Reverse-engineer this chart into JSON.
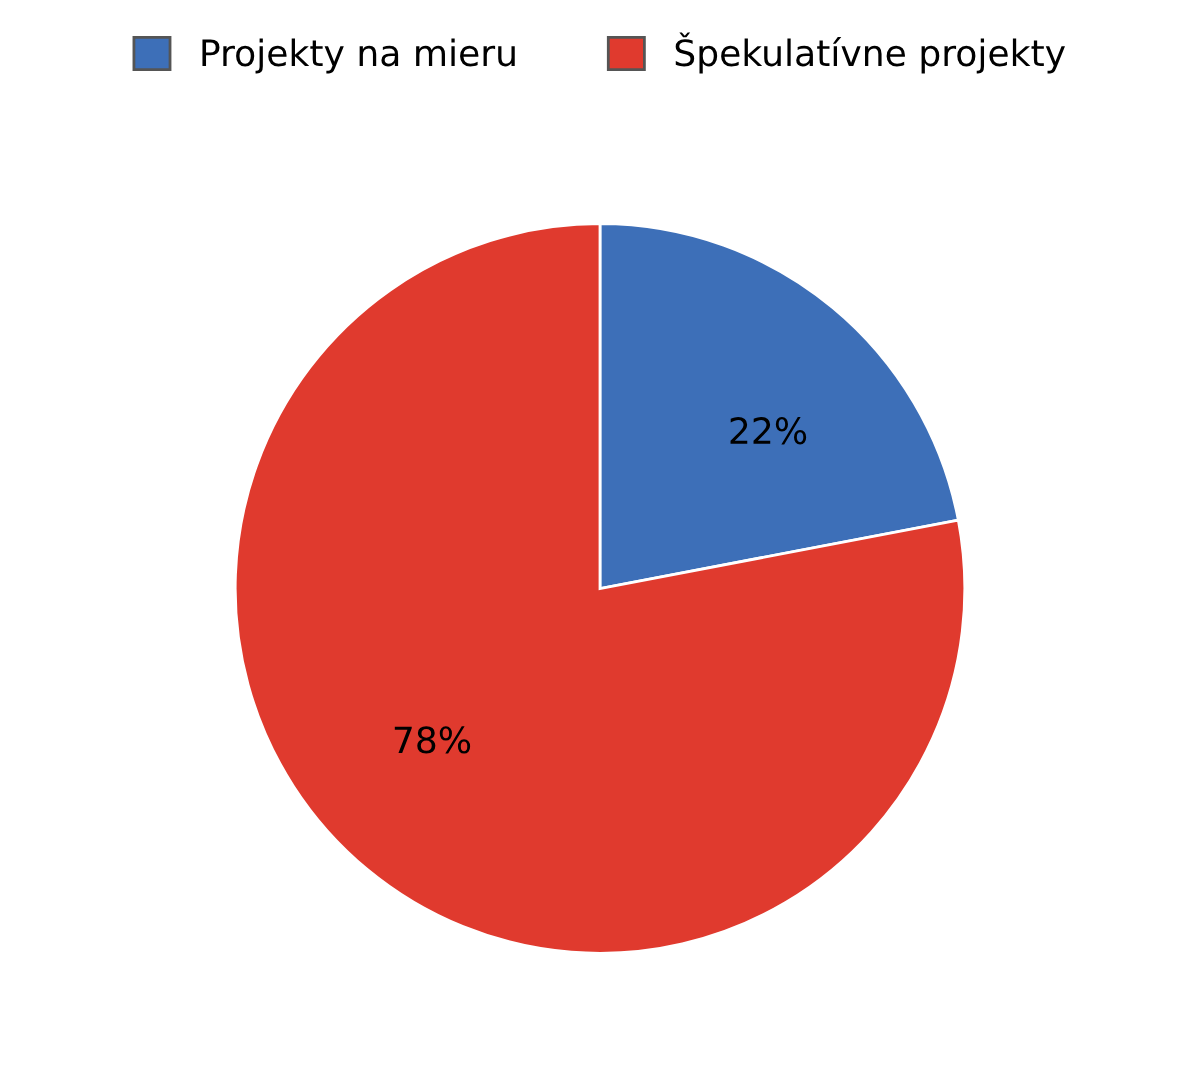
{
  "chart_data": {
    "type": "pie",
    "categories": [
      "Projekty na mieru",
      "Špekulatívne projekty"
    ],
    "values": [
      22,
      78
    ],
    "colors": [
      "#3d6fb8",
      "#e03a2e"
    ],
    "value_labels": [
      "22%",
      "78%"
    ],
    "legend": "top"
  }
}
